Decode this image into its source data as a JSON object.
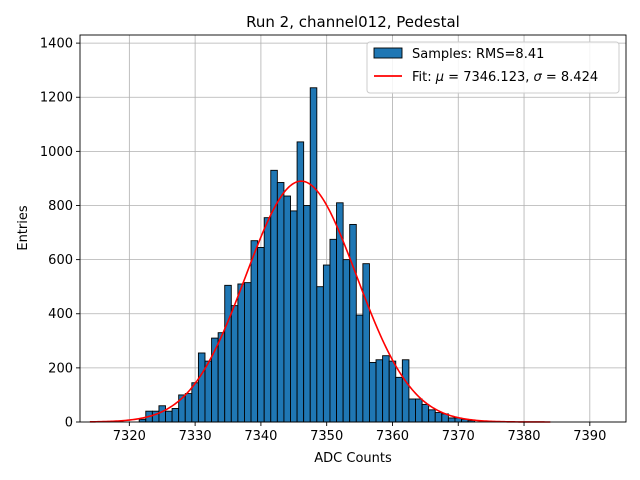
{
  "chart_data": {
    "type": "bar",
    "title": "Run 2, channel012, Pedestal",
    "xlabel": "ADC Counts",
    "ylabel": "Entries",
    "xlim": [
      7312.5,
      7395.5
    ],
    "ylim": [
      0,
      1430
    ],
    "grid": true,
    "legend_position": "top-right",
    "x_ticks": [
      7320,
      7330,
      7340,
      7350,
      7360,
      7370,
      7380,
      7390
    ],
    "y_ticks": [
      0,
      200,
      400,
      600,
      800,
      1000,
      1200,
      1400
    ],
    "bin_width": 1,
    "series": [
      {
        "name": "Samples: RMS=8.41",
        "kind": "histogram",
        "color": "#1f77b4",
        "edge_color": "#000000",
        "bins": [
          7322,
          7323,
          7324,
          7325,
          7326,
          7327,
          7328,
          7329,
          7330,
          7331,
          7332,
          7333,
          7334,
          7335,
          7336,
          7337,
          7338,
          7339,
          7340,
          7341,
          7342,
          7343,
          7344,
          7345,
          7346,
          7347,
          7348,
          7349,
          7350,
          7351,
          7352,
          7353,
          7354,
          7355,
          7356,
          7357,
          7358,
          7359,
          7360,
          7361,
          7362,
          7363,
          7364,
          7365,
          7366,
          7367,
          7368,
          7369,
          7370,
          7371,
          7372
        ],
        "values": [
          10,
          40,
          40,
          60,
          40,
          50,
          100,
          105,
          145,
          255,
          225,
          310,
          330,
          505,
          430,
          510,
          515,
          670,
          645,
          755,
          930,
          885,
          835,
          780,
          1035,
          800,
          1235,
          500,
          580,
          675,
          810,
          600,
          730,
          395,
          585,
          220,
          230,
          245,
          225,
          165,
          230,
          85,
          85,
          65,
          45,
          35,
          30,
          15,
          15,
          10,
          5
        ]
      },
      {
        "name": "Fit: μ = 7346.123, σ = 8.424",
        "kind": "line",
        "color": "#ff0000",
        "mu": 7346.123,
        "sigma": 8.424,
        "amplitude": 890,
        "x_range": [
          7314,
          7384
        ]
      }
    ]
  }
}
